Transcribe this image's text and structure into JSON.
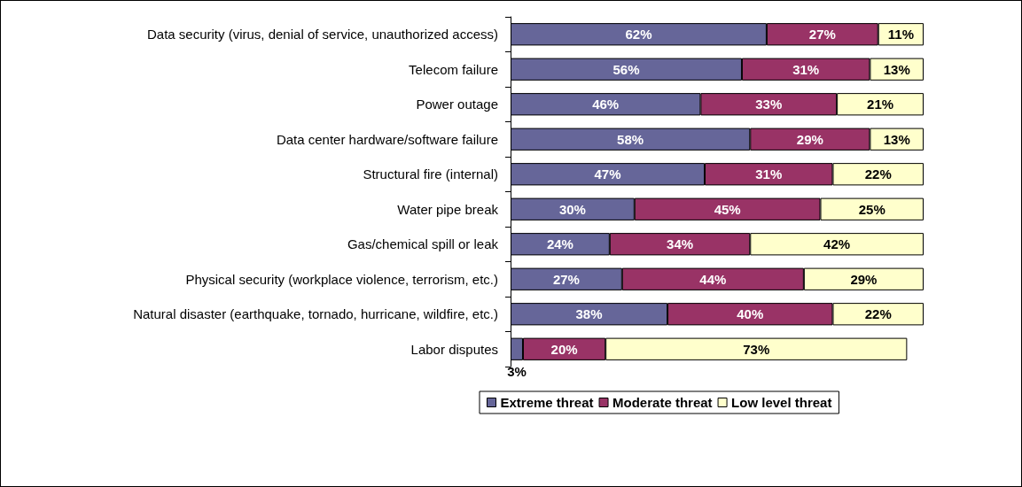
{
  "chart_data": {
    "type": "bar",
    "orientation": "horizontal",
    "stacked": true,
    "categories": [
      "Data security (virus, denial of service, unauthorized access)",
      "Telecom failure",
      "Power outage",
      "Data center hardware/software failure",
      "Structural fire (internal)",
      "Water pipe break",
      "Gas/chemical spill or leak",
      "Physical security (workplace violence, terrorism, etc.)",
      "Natural disaster (earthquake, tornado, hurricane, wildfire, etc.)",
      "Labor disputes"
    ],
    "series": [
      {
        "name": "Extreme threat",
        "color": "#666699",
        "values": [
          62,
          56,
          46,
          58,
          47,
          30,
          24,
          27,
          38,
          3
        ],
        "value_labels": [
          "62%",
          "56%",
          "46%",
          "58%",
          "47%",
          "30%",
          "24%",
          "27%",
          "38%",
          "3%"
        ]
      },
      {
        "name": "Moderate threat",
        "color": "#993366",
        "values": [
          27,
          31,
          33,
          29,
          31,
          45,
          34,
          44,
          40,
          20
        ],
        "value_labels": [
          "27%",
          "31%",
          "33%",
          "29%",
          "31%",
          "45%",
          "34%",
          "44%",
          "40%",
          "20%"
        ]
      },
      {
        "name": "Low level threat",
        "color": "#ffffcc",
        "values": [
          11,
          13,
          21,
          13,
          22,
          25,
          42,
          29,
          22,
          73
        ],
        "value_labels": [
          "11%",
          "13%",
          "21%",
          "13%",
          "22%",
          "25%",
          "42%",
          "29%",
          "22%",
          "73%"
        ]
      }
    ],
    "tick_labels": "y",
    "grid": false,
    "legend": "bottom"
  }
}
